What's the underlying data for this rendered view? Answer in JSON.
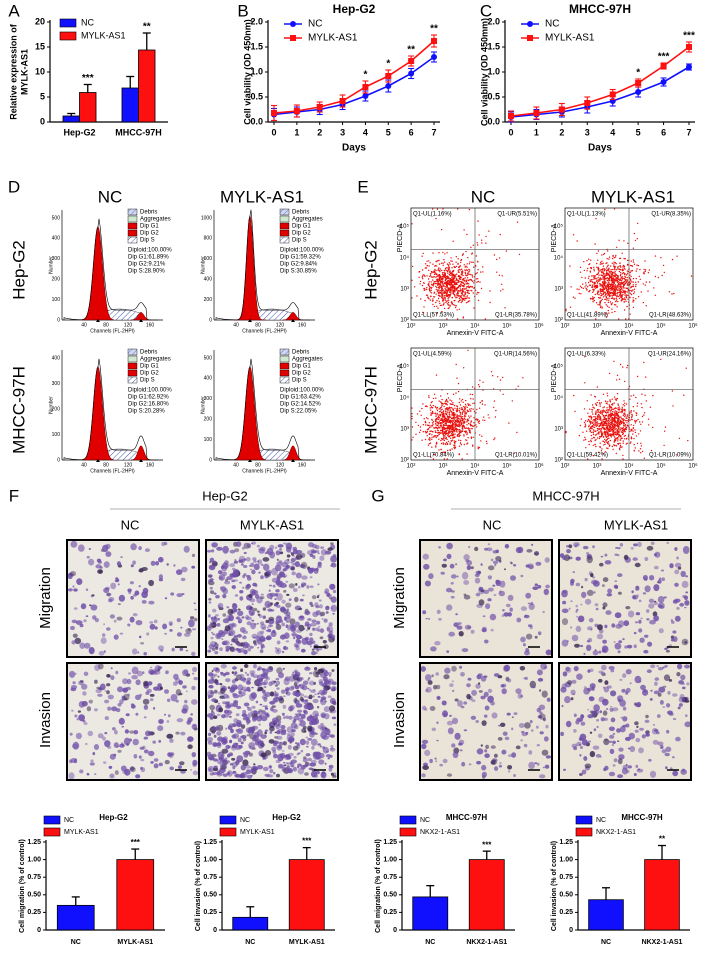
{
  "panel_labels": [
    "A",
    "B",
    "C",
    "D",
    "E",
    "F",
    "G"
  ],
  "chart_data": [
    {
      "type": "bar",
      "y_label": [
        "Relative expression of",
        "MYLK-AS1"
      ],
      "categories": [
        "Hep-G2",
        "MHCC-97H"
      ],
      "series": [
        {
          "name": "NC",
          "color": "#1010ff",
          "values": [
            1.2,
            6.8
          ],
          "errors": [
            0.5,
            2.3
          ]
        },
        {
          "name": "MYLK-AS1",
          "color": "#ff1010",
          "values": [
            5.9,
            14.4
          ],
          "errors": [
            1.6,
            3.4
          ]
        }
      ],
      "significance": [
        "***",
        "**"
      ],
      "ylim": [
        0,
        20
      ],
      "yticks": [
        0,
        5,
        10,
        15,
        20
      ]
    },
    {
      "type": "line",
      "title": "Hep-G2",
      "x_label": "Days",
      "y_label": "Cell viability (OD 450nm)",
      "x": [
        0,
        1,
        2,
        3,
        4,
        5,
        6,
        7
      ],
      "series": [
        {
          "name": "NC",
          "color": "#1010ff",
          "marker": "circle",
          "values": [
            0.15,
            0.2,
            0.25,
            0.35,
            0.52,
            0.72,
            0.97,
            1.3
          ],
          "errors": [
            0.12,
            0.1,
            0.1,
            0.1,
            0.1,
            0.12,
            0.1,
            0.1
          ]
        },
        {
          "name": "MYLK-AS1",
          "color": "#ff1010",
          "marker": "square",
          "values": [
            0.18,
            0.22,
            0.3,
            0.42,
            0.7,
            0.92,
            1.22,
            1.62
          ],
          "errors": [
            0.15,
            0.12,
            0.1,
            0.12,
            0.12,
            0.12,
            0.1,
            0.12
          ]
        }
      ],
      "significance": [
        null,
        null,
        null,
        null,
        "*",
        "*",
        "**",
        "**"
      ],
      "xlim": [
        0,
        7
      ],
      "xticks": [
        0,
        1,
        2,
        3,
        4,
        5,
        6,
        7
      ],
      "ylim": [
        0,
        2
      ],
      "yticks": [
        {
          "value": 0,
          "label": "0.0"
        },
        0.5,
        {
          "value": 1,
          "label": "1.0"
        },
        1.5,
        {
          "value": 2,
          "label": "2.0"
        }
      ]
    },
    {
      "type": "line",
      "title": "MHCC-97H",
      "x_label": "Days",
      "y_label": "Cell viability (OD 450mm)",
      "x": [
        0,
        1,
        2,
        3,
        4,
        5,
        6,
        7
      ],
      "series": [
        {
          "name": "NC",
          "color": "#1010ff",
          "marker": "circle",
          "values": [
            0.1,
            0.15,
            0.2,
            0.3,
            0.42,
            0.6,
            0.8,
            1.1
          ],
          "errors": [
            0.1,
            0.1,
            0.1,
            0.12,
            0.1,
            0.1,
            0.08,
            0.06
          ]
        },
        {
          "name": "MYLK-AS1",
          "color": "#ff1010",
          "marker": "square",
          "values": [
            0.12,
            0.18,
            0.25,
            0.38,
            0.55,
            0.78,
            1.12,
            1.5
          ],
          "errors": [
            0.1,
            0.12,
            0.12,
            0.12,
            0.1,
            0.08,
            0.06,
            0.1
          ]
        }
      ],
      "significance": [
        null,
        null,
        null,
        null,
        null,
        "*",
        "***",
        "***"
      ],
      "xlim": [
        0,
        7
      ],
      "xticks": [
        0,
        1,
        2,
        3,
        4,
        5,
        6,
        7
      ],
      "ylim": [
        0,
        2
      ],
      "yticks": [
        {
          "value": 0,
          "label": "0.0"
        },
        0.5,
        {
          "value": 1,
          "label": "1.0"
        },
        1.5,
        {
          "value": 2,
          "label": "2.0"
        }
      ]
    },
    {
      "type": "bar",
      "title": "Hep-G2",
      "y_label": "Cell migration (% of control)",
      "categories": [
        "NC",
        "MYLK-AS1"
      ],
      "colors": [
        "#1010ff",
        "#ff1010"
      ],
      "values": [
        0.35,
        1.0
      ],
      "errors": [
        0.12,
        0.15
      ],
      "significance": [
        null,
        "***"
      ],
      "ylim": [
        0,
        1.25
      ],
      "yticks": [
        0,
        0.25,
        {
          "value": 0.5,
          "label": "0.50"
        },
        0.75,
        {
          "value": 1,
          "label": "1.00"
        },
        1.25
      ]
    },
    {
      "type": "bar",
      "title": "Hep-G2",
      "y_label": "Cell invasion (% of control)",
      "categories": [
        "NC",
        "MYLK-AS1"
      ],
      "colors": [
        "#1010ff",
        "#ff1010"
      ],
      "values": [
        0.18,
        1.0
      ],
      "errors": [
        0.15,
        0.17
      ],
      "significance": [
        null,
        "***"
      ],
      "ylim": [
        0,
        1.25
      ],
      "yticks": [
        0,
        0.25,
        {
          "value": 0.5,
          "label": "0.50"
        },
        0.75,
        {
          "value": 1,
          "label": "1.00"
        },
        1.25
      ]
    },
    {
      "type": "bar",
      "title": "MHCC-97H",
      "y_label": "Cell migration (% of control)",
      "categories": [
        "NC",
        "NKX2-1-AS1"
      ],
      "colors": [
        "#1010ff",
        "#ff1010"
      ],
      "values": [
        0.47,
        1.0
      ],
      "errors": [
        0.16,
        0.12
      ],
      "significance": [
        null,
        "***"
      ],
      "ylim": [
        0,
        1.25
      ],
      "yticks": [
        0,
        0.25,
        {
          "value": 0.5,
          "label": "0.50"
        },
        0.75,
        {
          "value": 1,
          "label": "1.00"
        },
        1.25
      ]
    },
    {
      "type": "bar",
      "title": "MHCC-97H",
      "y_label": "Cell invasion (% of control)",
      "categories": [
        "NC",
        "NKX2-1-AS1"
      ],
      "colors": [
        "#1010ff",
        "#ff1010"
      ],
      "values": [
        0.43,
        1.0
      ],
      "errors": [
        0.17,
        0.2
      ],
      "significance": [
        null,
        "**"
      ],
      "ylim": [
        0,
        1.25
      ],
      "yticks": [
        0,
        0.25,
        {
          "value": 0.5,
          "label": "0.50"
        },
        0.75,
        {
          "value": 1,
          "label": "1.00"
        },
        1.25
      ]
    }
  ],
  "cell_cycle": {
    "columns": [
      "NC",
      "MYLK-AS1"
    ],
    "rows": [
      "Hep-G2",
      "MHCC-97H"
    ],
    "legend": [
      "Debris",
      "Aggregates",
      "Dip G1",
      "Dip G2",
      "Dip S"
    ],
    "x_label": "Channels (FL-2HPI)",
    "y_label": "Number",
    "x_ticks": [
      "40",
      "80",
      "120",
      "160"
    ],
    "plots": [
      {
        "y_ticks": [
          "0",
          "100",
          "200",
          "300",
          "400",
          "500"
        ],
        "stats": [
          "Diploid:100.00%",
          "Dip G1:61.89%",
          "Dip G2:9.21%",
          "Dip S:28.90%"
        ]
      },
      {
        "y_ticks": [
          "0",
          "200",
          "400",
          "600",
          "800",
          "1000"
        ],
        "stats": [
          "Diploid:100.00%",
          "Dip G1:59.32%",
          "Dip G2:9.84%",
          "Dip S:30.85%"
        ]
      },
      {
        "y_ticks": [
          "0",
          "100",
          "200",
          "300",
          "400"
        ],
        "stats": [
          "Diploid:100.00%",
          "Dip G1:62.92%",
          "Dip G2:16.80%",
          "Dip S:20.28%"
        ]
      },
      {
        "y_ticks": [
          "0",
          "100",
          "200",
          "300",
          "400",
          "500"
        ],
        "stats": [
          "Diploid:100.00%",
          "Dip G1:63.42%",
          "Dip G2:14.52%",
          "Dip S:22.05%"
        ]
      }
    ]
  },
  "apoptosis": {
    "columns": [
      "NC",
      "MYLK-AS1"
    ],
    "rows": [
      "Hep-G2",
      "MHCC-97H"
    ],
    "x_label": "Annexin-V FITC-A",
    "y_label": "PIECD-A",
    "ticks": [
      "10²",
      "10³",
      "10⁴",
      "10⁵",
      "10⁶"
    ],
    "plots": [
      {
        "UL": "Q1-UL(1.16%)",
        "UR": "Q1-UR(5.51%)",
        "LL": "Q1-LL(57.53%)",
        "LR": "Q1-LR(35.78%)"
      },
      {
        "UL": "Q1-UL(1.13%)",
        "UR": "Q1-UR(8.35%)",
        "LL": "Q1-LL(41.89%)",
        "LR": "Q1-LR(48.63%)"
      },
      {
        "UL": "Q1-UL(4.59%)",
        "UR": "Q1-UR(14.56%)",
        "LL": "Q1-LL(70.84%)",
        "LR": "Q1-LR(10.01%)"
      },
      {
        "UL": "Q1-UL(6.33%)",
        "UR": "Q1-UR(24.16%)",
        "LL": "Q1-LL(59.42%)",
        "LR": "Q1-LR(10.09%)"
      }
    ]
  },
  "transwell": [
    {
      "title": "Hep-G2",
      "columns": [
        "NC",
        "MYLK-AS1"
      ],
      "rows": [
        "Migration",
        "Invasion"
      ]
    },
    {
      "title": "MHCC-97H",
      "columns": [
        "NC",
        "MYLK-AS1"
      ],
      "rows": [
        "Migration",
        "Invasion"
      ]
    }
  ]
}
